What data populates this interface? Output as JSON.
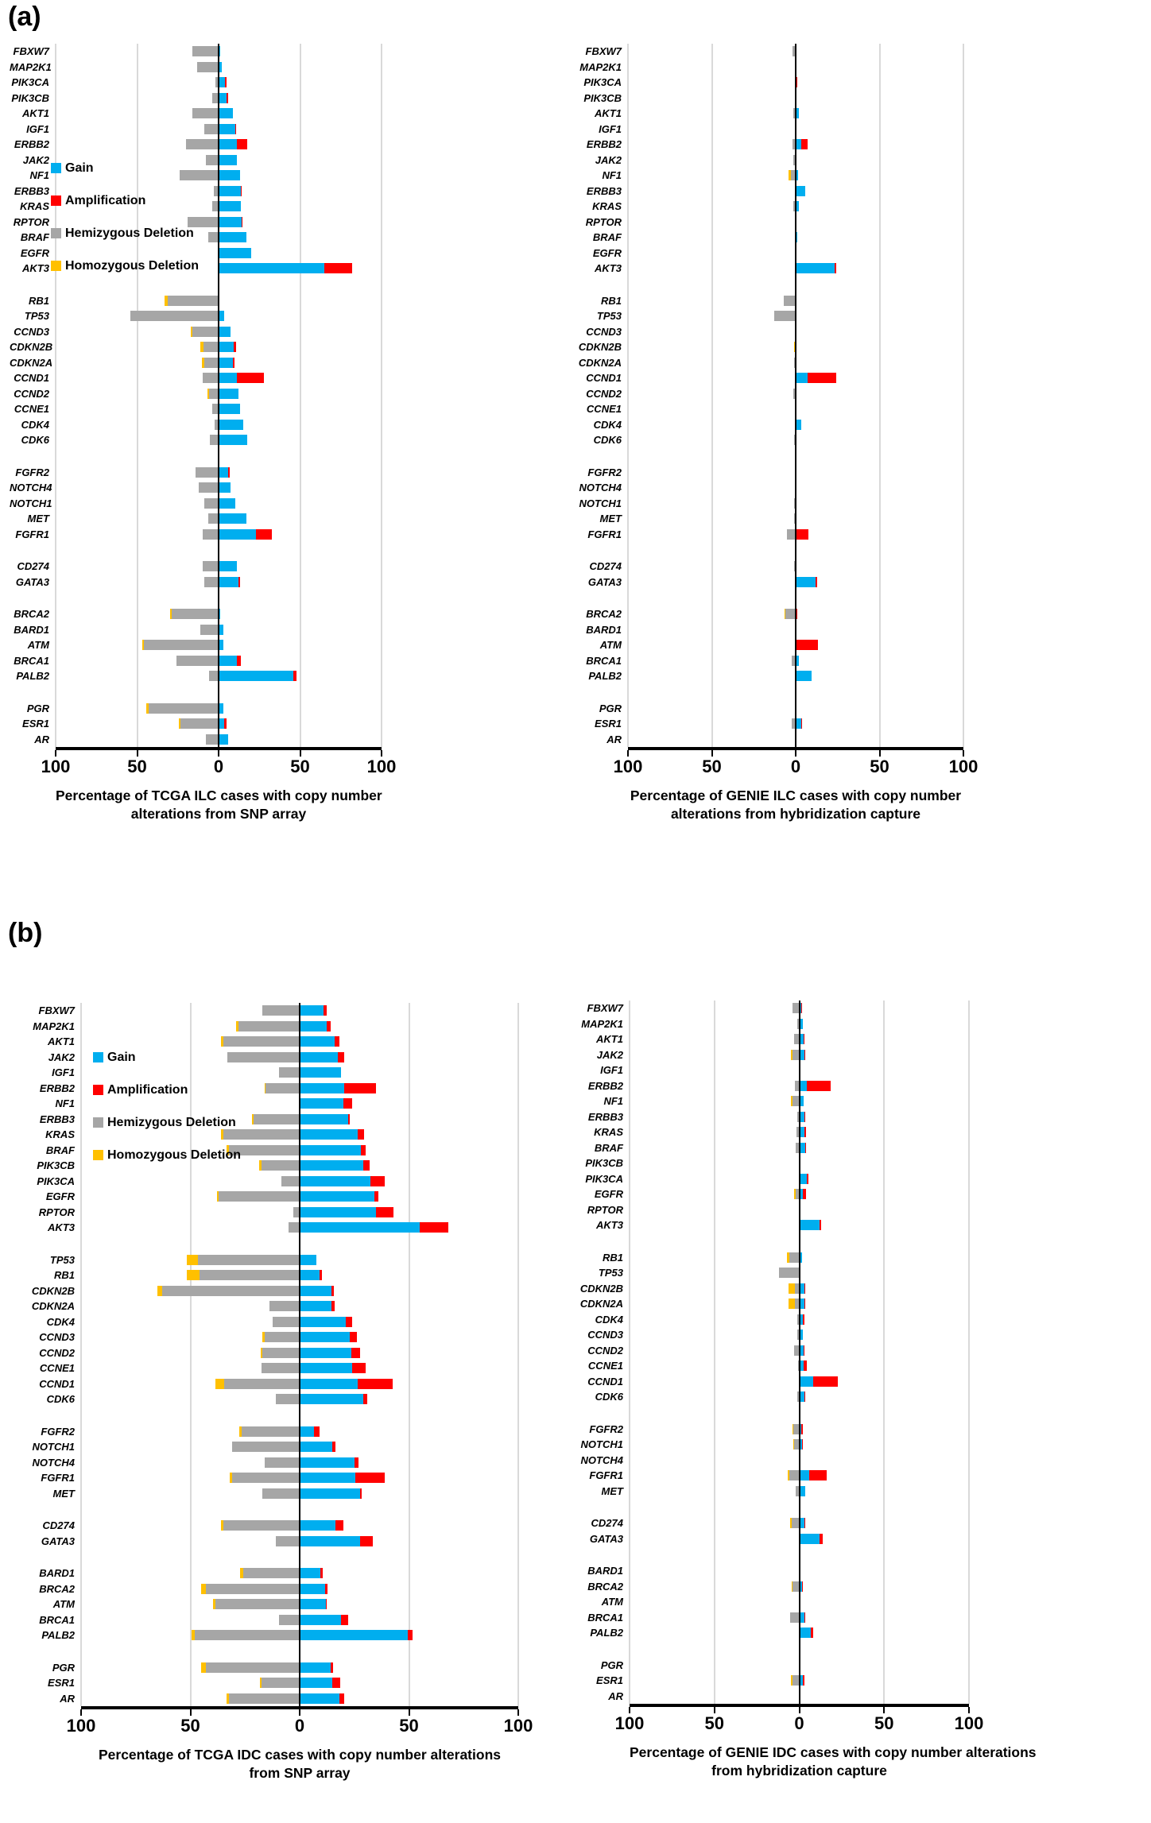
{
  "figure": {
    "panel_a_label": "(a)",
    "panel_b_label": "(b)"
  },
  "colors": {
    "gain": "#00AEEF",
    "amplification": "#FF0000",
    "hemizygous_deletion": "#A6A6A6",
    "homozygous_deletion": "#FFC000",
    "axis": "#000000",
    "gridline": "#D9D9D9"
  },
  "legend": {
    "items": [
      {
        "key": "gain",
        "label": "Gain",
        "color": "#00AEEF"
      },
      {
        "key": "amplification",
        "label": "Amplification",
        "color": "#FF0000"
      },
      {
        "key": "hemizygous",
        "label": "Hemizygous Deletion",
        "color": "#A6A6A6"
      },
      {
        "key": "homozygous",
        "label": "Homozygous Deletion",
        "color": "#FFC000"
      }
    ]
  },
  "axis": {
    "ticks": [
      "100",
      "50",
      "0",
      "50",
      "100"
    ]
  },
  "chart_data": [
    {
      "id": "tcga-ilc",
      "type": "diverging-bar",
      "panel": "a",
      "side": "left",
      "legend_visible": true,
      "title_lines": [
        "Percentage of TCGA ILC cases with copy number",
        "alterations from SNP array"
      ],
      "xlim": [
        -100,
        100
      ],
      "tick_values": [
        -100,
        -50,
        0,
        50,
        100
      ],
      "units": "percent of cases; deletions plotted left of 0, gain/amplification right of 0",
      "groups": [
        [
          {
            "n": "FBXW7",
            "hz": 16,
            "g": 1
          },
          {
            "n": "MAP2K1",
            "hz": 13,
            "g": 2
          },
          {
            "n": "PIK3CA",
            "hz": 2,
            "g": 4,
            "a": 1
          },
          {
            "n": "PIK3CB",
            "hz": 4,
            "g": 5,
            "a": 1
          },
          {
            "n": "AKT1",
            "hz": 16,
            "g": 9
          },
          {
            "n": "IGF1",
            "hz": 9,
            "g": 10,
            "a": 0.5
          },
          {
            "n": "ERBB2",
            "hz": 20,
            "g": 11,
            "a": 6.5
          },
          {
            "n": "JAK2",
            "hz": 8,
            "g": 11
          },
          {
            "n": "NF1",
            "hz": 24,
            "g": 13
          },
          {
            "n": "ERBB3",
            "hz": 3,
            "g": 13.5,
            "a": 0.7
          },
          {
            "n": "KRAS",
            "hz": 4,
            "g": 13.5
          },
          {
            "n": "RPTOR",
            "hz": 19,
            "g": 14,
            "a": 0.7
          },
          {
            "n": "BRAF",
            "hz": 6.5,
            "g": 17
          },
          {
            "n": "EGFR",
            "hz": 0.5,
            "g": 20
          },
          {
            "n": "AKT3",
            "g": 65,
            "a": 17
          }
        ],
        [
          {
            "n": "RB1",
            "hd": 2,
            "hz": 31
          },
          {
            "n": "TP53",
            "hz": 54,
            "g": 3.5
          },
          {
            "n": "CCND3",
            "hd": 1,
            "hz": 16,
            "g": 7.5
          },
          {
            "n": "CDKN2B",
            "hd": 1.5,
            "hz": 9.5,
            "g": 9.5,
            "a": 1
          },
          {
            "n": "CDKN2A",
            "hd": 1.5,
            "hz": 9,
            "g": 9,
            "a": 1
          },
          {
            "n": "CCND1",
            "hz": 10,
            "g": 11,
            "a": 17
          },
          {
            "n": "CCND2",
            "hd": 1,
            "hz": 6,
            "g": 12
          },
          {
            "n": "CCNE1",
            "hz": 4,
            "g": 13
          },
          {
            "n": "CDK4",
            "hz": 2.5,
            "g": 15
          },
          {
            "n": "CDK6",
            "hz": 5.5,
            "g": 17.5
          }
        ],
        [
          {
            "n": "FGFR2",
            "hz": 14,
            "g": 6,
            "a": 1
          },
          {
            "n": "NOTCH4",
            "hz": 12,
            "g": 7.5
          },
          {
            "n": "NOTCH1",
            "hz": 9,
            "g": 10
          },
          {
            "n": "MET",
            "hz": 6.5,
            "g": 17
          },
          {
            "n": "FGFR1",
            "hz": 10,
            "g": 23,
            "a": 9.5
          }
        ],
        [
          {
            "n": "CD274",
            "hz": 10,
            "g": 11
          },
          {
            "n": "GATA3",
            "hz": 9,
            "g": 12,
            "a": 1
          }
        ],
        [
          {
            "n": "BRCA2",
            "hd": 1,
            "hz": 29,
            "g": 1
          },
          {
            "n": "BARD1",
            "hz": 11,
            "g": 3
          },
          {
            "n": "ATM",
            "hd": 1,
            "hz": 46,
            "g": 3
          },
          {
            "n": "BRCA1",
            "hz": 26,
            "g": 11,
            "a": 2.5
          },
          {
            "n": "PALB2",
            "hz": 6,
            "g": 46,
            "a": 2
          }
        ],
        [
          {
            "n": "PGR",
            "hd": 1.5,
            "hz": 43,
            "g": 3
          },
          {
            "n": "ESR1",
            "hd": 1,
            "hz": 23.5,
            "g": 3.5,
            "a": 1.5
          },
          {
            "n": "AR",
            "hz": 8,
            "g": 6
          }
        ]
      ]
    },
    {
      "id": "genie-ilc",
      "type": "diverging-bar",
      "panel": "a",
      "side": "right",
      "legend_visible": false,
      "title_lines": [
        "Percentage of GENIE ILC cases with copy number",
        "alterations from hybridization capture"
      ],
      "xlim": [
        -100,
        100
      ],
      "tick_values": [
        -100,
        -50,
        0,
        50,
        100
      ],
      "units": "percent of cases; deletions plotted left of 0, gain/amplification right of 0",
      "groups": [
        [
          {
            "n": "FBXW7",
            "hz": 2
          },
          {
            "n": "MAP2K1"
          },
          {
            "n": "PIK3CA",
            "a": 1
          },
          {
            "n": "PIK3CB"
          },
          {
            "n": "AKT1",
            "hz": 1.5,
            "g": 2
          },
          {
            "n": "IGF1"
          },
          {
            "n": "ERBB2",
            "hz": 2,
            "g": 3.5,
            "a": 3.5
          },
          {
            "n": "JAK2",
            "hz": 1.2
          },
          {
            "n": "NF1",
            "hd": 1.2,
            "hz": 3,
            "g": 1.5
          },
          {
            "n": "ERBB3",
            "g": 5.5
          },
          {
            "n": "KRAS",
            "hz": 1.5,
            "g": 2
          },
          {
            "n": "RPTOR"
          },
          {
            "n": "BRAF",
            "g": 1
          },
          {
            "n": "EGFR",
            "hz": 0.5
          },
          {
            "n": "AKT3",
            "g": 23,
            "a": 1
          }
        ],
        [
          {
            "n": "RB1",
            "hz": 7
          },
          {
            "n": "TP53",
            "hz": 13
          },
          {
            "n": "CCND3",
            "hz": 0.5
          },
          {
            "n": "CDKN2B",
            "hd": 1
          },
          {
            "n": "CDKN2A",
            "hz": 1
          },
          {
            "n": "CCND1",
            "g": 7,
            "a": 17
          },
          {
            "n": "CCND2",
            "hz": 1.5,
            "g": 0.5
          },
          {
            "n": "CCNE1",
            "g": 0.5
          },
          {
            "n": "CDK4",
            "g": 3.5
          },
          {
            "n": "CDK6",
            "hz": 1,
            "g": 0.5
          }
        ],
        [
          {
            "n": "FGFR2"
          },
          {
            "n": "NOTCH4"
          },
          {
            "n": "NOTCH1",
            "hz": 1,
            "g": 0.5
          },
          {
            "n": "MET",
            "hz": 1,
            "g": 0.5
          },
          {
            "n": "FGFR1",
            "hz": 5,
            "a": 7.5
          }
        ],
        [
          {
            "n": "CD274",
            "hz": 1
          },
          {
            "n": "GATA3",
            "g": 12,
            "a": 1
          }
        ],
        [
          {
            "n": "BRCA2",
            "hd": 0.5,
            "hz": 6,
            "a": 1
          },
          {
            "n": "BARD1"
          },
          {
            "n": "ATM",
            "a": 13.5
          },
          {
            "n": "BRCA1",
            "hz": 2.5,
            "g": 2
          },
          {
            "n": "PALB2",
            "g": 9.5
          }
        ],
        [
          {
            "n": "PGR"
          },
          {
            "n": "ESR1",
            "hz": 2.5,
            "g": 3.5,
            "a": 0.5
          },
          {
            "n": "AR"
          }
        ]
      ]
    },
    {
      "id": "tcga-idc",
      "type": "diverging-bar",
      "panel": "b",
      "side": "left",
      "legend_visible": true,
      "title_lines": [
        "Percentage of TCGA IDC cases with copy number alterations",
        "from SNP array"
      ],
      "xlim": [
        -100,
        100
      ],
      "tick_values": [
        -100,
        -50,
        0,
        50,
        100
      ],
      "units": "percent of cases; deletions plotted left of 0, gain/amplification right of 0",
      "groups": [
        [
          {
            "n": "FBXW7",
            "hz": 17,
            "g": 11,
            "a": 1.2
          },
          {
            "n": "MAP2K1",
            "hd": 1,
            "hz": 28,
            "g": 12.5,
            "a": 1.5
          },
          {
            "n": "AKT1",
            "hd": 1,
            "hz": 35,
            "g": 16,
            "a": 2
          },
          {
            "n": "JAK2",
            "hz": 33,
            "g": 17.5,
            "a": 3
          },
          {
            "n": "IGF1",
            "hz": 9.5,
            "g": 19
          },
          {
            "n": "ERBB2",
            "hd": 0.5,
            "hz": 15.5,
            "g": 20.5,
            "a": 14.5
          },
          {
            "n": "NF1",
            "g": 20,
            "a": 4
          },
          {
            "n": "ERBB3",
            "hd": 1,
            "hz": 21,
            "g": 22,
            "a": 1
          },
          {
            "n": "KRAS",
            "hd": 1,
            "hz": 35,
            "g": 26.5,
            "a": 3
          },
          {
            "n": "BRAF",
            "hd": 1,
            "hz": 32.5,
            "g": 28,
            "a": 2
          },
          {
            "n": "PIK3CB",
            "hd": 1,
            "hz": 17.5,
            "g": 29,
            "a": 3
          },
          {
            "n": "PIK3CA",
            "hz": 8.5,
            "g": 32.5,
            "a": 6.5
          },
          {
            "n": "EGFR",
            "hd": 0.7,
            "hz": 37,
            "g": 34,
            "a": 2
          },
          {
            "n": "RPTOR",
            "hz": 3,
            "g": 35,
            "a": 8
          },
          {
            "n": "AKT3",
            "hz": 5,
            "g": 55,
            "a": 13
          }
        ],
        [
          {
            "n": "TP53",
            "hd": 5,
            "hz": 46.5,
            "g": 7.5
          },
          {
            "n": "RB1",
            "hd": 5.5,
            "hz": 46,
            "g": 9,
            "a": 1
          },
          {
            "n": "CDKN2B",
            "hd": 2,
            "hz": 63,
            "g": 14.5,
            "a": 1
          },
          {
            "n": "CDKN2A",
            "hz": 14,
            "g": 14.5,
            "a": 1.5
          },
          {
            "n": "CDK4",
            "hz": 12.5,
            "g": 21,
            "a": 3
          },
          {
            "n": "CCND3",
            "hd": 1,
            "hz": 16,
            "g": 23,
            "a": 3
          },
          {
            "n": "CCND2",
            "hd": 1,
            "hz": 17,
            "g": 23.5,
            "a": 4
          },
          {
            "n": "CCNE1",
            "hz": 17.5,
            "g": 24,
            "a": 6
          },
          {
            "n": "CCND1",
            "hd": 4,
            "hz": 34.5,
            "g": 26.5,
            "a": 16
          },
          {
            "n": "CDK6",
            "hz": 11,
            "g": 29,
            "a": 2
          }
        ],
        [
          {
            "n": "FGFR2",
            "hd": 1.2,
            "hz": 26.5,
            "g": 6.5,
            "a": 2.5
          },
          {
            "n": "NOTCH1",
            "hz": 31,
            "g": 15,
            "a": 1.5
          },
          {
            "n": "NOTCH4",
            "hz": 16,
            "g": 25,
            "a": 2
          },
          {
            "n": "FGFR1",
            "hd": 1,
            "hz": 31,
            "g": 25.5,
            "a": 13.5
          },
          {
            "n": "MET",
            "hz": 17,
            "g": 27.5,
            "a": 1
          }
        ],
        [
          {
            "n": "CD274",
            "hd": 1,
            "hz": 35,
            "g": 16.5,
            "a": 3.5
          },
          {
            "n": "GATA3",
            "hz": 11,
            "g": 27.5,
            "a": 6
          }
        ],
        [
          {
            "n": "BARD1",
            "hd": 1.2,
            "hz": 26,
            "g": 9.5,
            "a": 1
          },
          {
            "n": "BRCA2",
            "hd": 2,
            "hz": 43,
            "g": 11.5,
            "a": 1.2
          },
          {
            "n": "ATM",
            "hd": 1,
            "hz": 38.5,
            "g": 12,
            "a": 0.5
          },
          {
            "n": "BRCA1",
            "hz": 9.5,
            "g": 19,
            "a": 3
          },
          {
            "n": "PALB2",
            "hd": 1.5,
            "hz": 48,
            "g": 49.5,
            "a": 2
          }
        ],
        [
          {
            "n": "PGR",
            "hd": 2,
            "hz": 43,
            "g": 14,
            "a": 1.2
          },
          {
            "n": "ESR1",
            "hd": 0.7,
            "hz": 17.5,
            "g": 15,
            "a": 3.5
          },
          {
            "n": "AR",
            "hd": 1,
            "hz": 32.5,
            "g": 18,
            "a": 2.5
          }
        ]
      ]
    },
    {
      "id": "genie-idc",
      "type": "diverging-bar",
      "panel": "b",
      "side": "right",
      "legend_visible": false,
      "title_lines": [
        "Percentage of GENIE IDC cases with copy number alterations",
        "from hybridization capture"
      ],
      "xlim": [
        -100,
        100
      ],
      "tick_values": [
        -100,
        -50,
        0,
        50,
        100
      ],
      "units": "percent of cases; deletions plotted left of 0, gain/amplification right of 0",
      "groups": [
        [
          {
            "n": "FBXW7",
            "hz": 4,
            "g": 1,
            "a": 0.5
          },
          {
            "n": "MAP2K1",
            "hz": 1,
            "g": 2
          },
          {
            "n": "AKT1",
            "hz": 3,
            "g": 2.5,
            "a": 0.5
          },
          {
            "n": "JAK2",
            "hd": 1,
            "hz": 4,
            "g": 3,
            "a": 0.5
          },
          {
            "n": "IGF1"
          },
          {
            "n": "ERBB2",
            "hz": 2.5,
            "g": 4.5,
            "a": 14
          },
          {
            "n": "NF1",
            "hd": 1,
            "hz": 4,
            "g": 2.5
          },
          {
            "n": "ERBB3",
            "hz": 1,
            "g": 3,
            "a": 0.5
          },
          {
            "n": "KRAS",
            "hz": 1.5,
            "g": 3,
            "a": 1
          },
          {
            "n": "BRAF",
            "hz": 2,
            "g": 3.5,
            "a": 0.5
          },
          {
            "n": "PIK3CB"
          },
          {
            "n": "PIK3CA",
            "g": 4.5,
            "a": 1
          },
          {
            "n": "EGFR",
            "hd": 1,
            "hz": 2,
            "g": 2,
            "a": 2
          },
          {
            "n": "RPTOR",
            "a": 0.5
          },
          {
            "n": "AKT3",
            "g": 12,
            "a": 1
          }
        ],
        [
          {
            "n": "RB1",
            "hd": 1.5,
            "hz": 6,
            "g": 1.5
          },
          {
            "n": "TP53",
            "hz": 12
          },
          {
            "n": "CDKN2B",
            "hd": 4,
            "hz": 2.5,
            "g": 3,
            "a": 0.5
          },
          {
            "n": "CDKN2A",
            "hd": 4,
            "hz": 2.5,
            "g": 3,
            "a": 0.5
          },
          {
            "n": "CDK4",
            "hz": 1,
            "g": 2,
            "a": 1
          },
          {
            "n": "CCND3",
            "hz": 1,
            "g": 2
          },
          {
            "n": "CCND2",
            "hz": 3,
            "g": 2.5,
            "a": 0.5
          },
          {
            "n": "CCNE1",
            "hz": 0.7,
            "g": 2.5,
            "a": 2
          },
          {
            "n": "CCND1",
            "g": 8,
            "a": 14.5
          },
          {
            "n": "CDK6",
            "hz": 1,
            "g": 3,
            "a": 0.5
          }
        ],
        [
          {
            "n": "FGFR2",
            "hd": 0.5,
            "hz": 3.5,
            "g": 1,
            "a": 1
          },
          {
            "n": "NOTCH1",
            "hd": 0.5,
            "hz": 3,
            "g": 1.5,
            "a": 0.5
          },
          {
            "n": "NOTCH4"
          },
          {
            "n": "FGFR1",
            "hd": 0.7,
            "hz": 6,
            "g": 6,
            "a": 10
          },
          {
            "n": "MET",
            "hz": 2,
            "g": 3.5
          }
        ],
        [
          {
            "n": "CD274",
            "hd": 0.7,
            "hz": 4.5,
            "g": 3,
            "a": 0.5
          },
          {
            "n": "GATA3",
            "g": 12,
            "a": 2
          }
        ],
        [
          {
            "n": "BARD1"
          },
          {
            "n": "BRCA2",
            "hd": 0.5,
            "hz": 4,
            "g": 1.5,
            "a": 0.5
          },
          {
            "n": "ATM"
          },
          {
            "n": "BRCA1",
            "hz": 5.5,
            "g": 3,
            "a": 0.5
          },
          {
            "n": "PALB2",
            "g": 7,
            "a": 1
          }
        ],
        [
          {
            "n": "PGR"
          },
          {
            "n": "ESR1",
            "hd": 0.7,
            "hz": 4,
            "g": 2,
            "a": 1
          },
          {
            "n": "AR",
            "a": 0.5
          }
        ]
      ]
    }
  ]
}
